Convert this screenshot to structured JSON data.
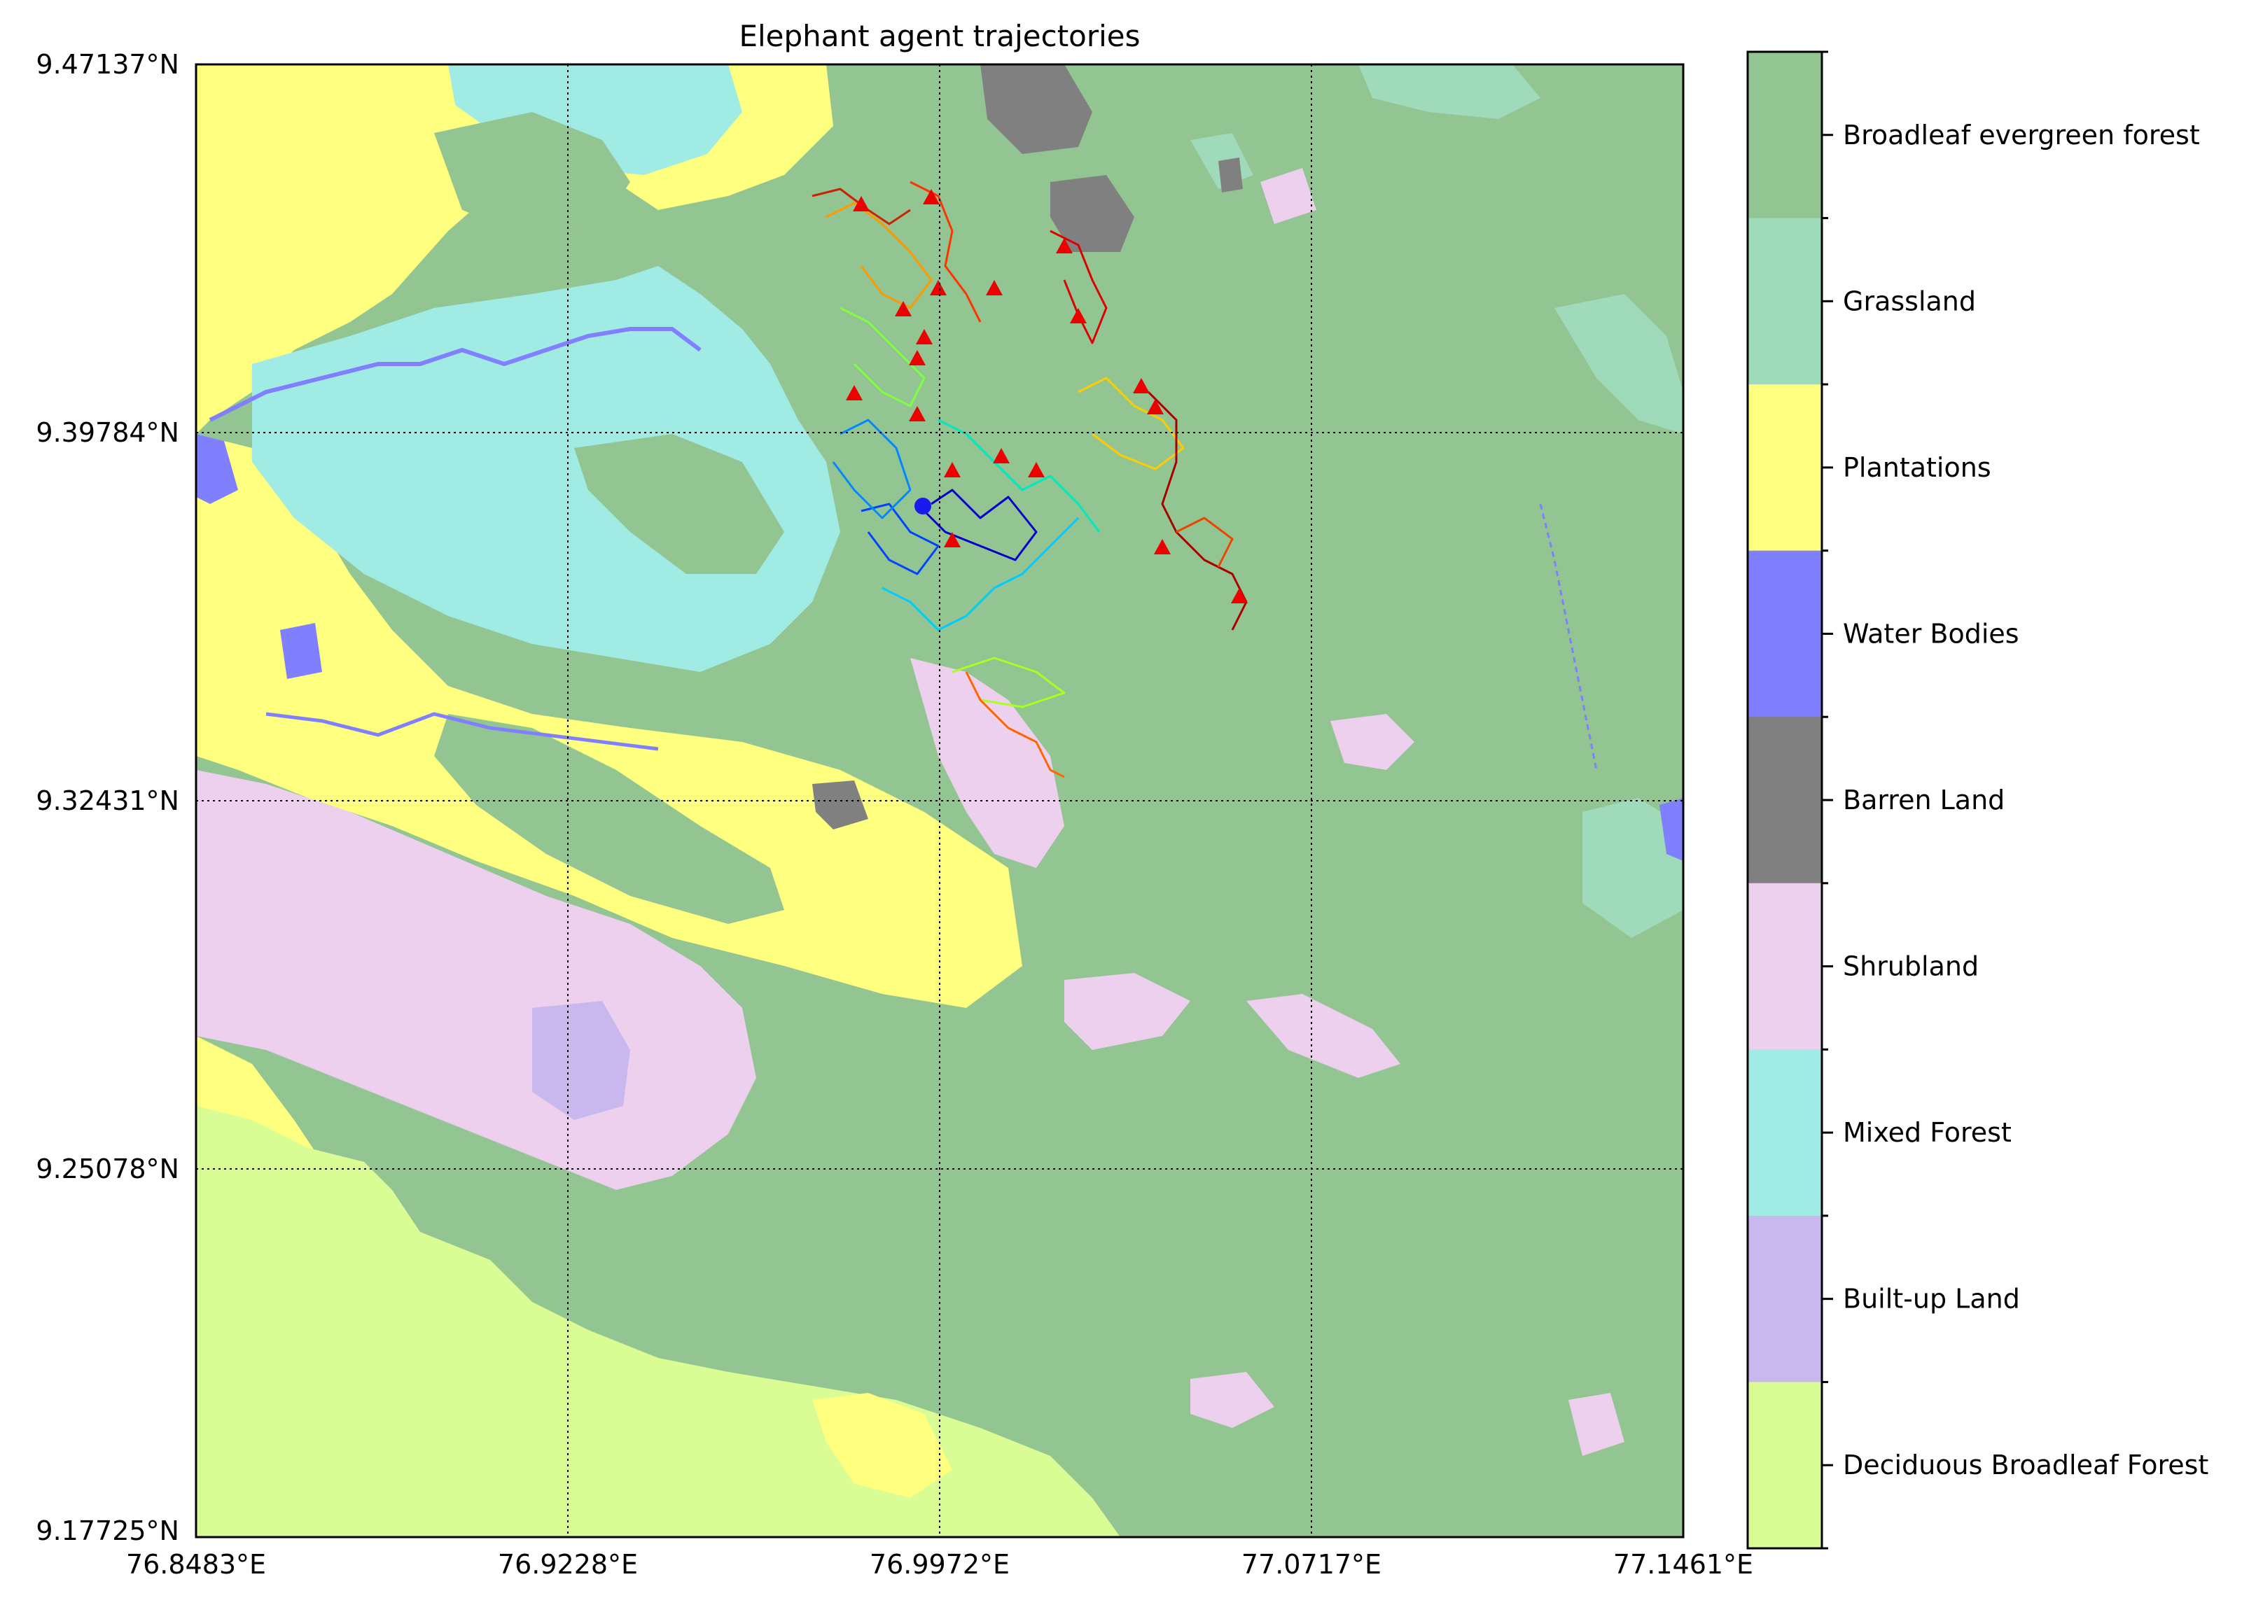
{
  "title": "Elephant agent trajectories",
  "map": {
    "lat_ticks": [
      "9.47137°N",
      "9.39784°N",
      "9.32431°N",
      "9.25078°N",
      "9.17725°N"
    ],
    "lon_ticks": [
      "76.8483°E",
      "76.9228°E",
      "76.9972°E",
      "77.0717°E",
      "77.1461°E"
    ],
    "grid": "dotted",
    "base_color": "#93c592"
  },
  "legend": {
    "placement": "right-colorbar",
    "classes": [
      {
        "label": "Broadleaf evergreen forest",
        "color": "#93c592"
      },
      {
        "label": "Grassland",
        "color": "#9fdabb"
      },
      {
        "label": "Plantations",
        "color": "#ffff80"
      },
      {
        "label": "Water Bodies",
        "color": "#8080ff"
      },
      {
        "label": "Barren Land",
        "color": "#808080"
      },
      {
        "label": "Shrubland",
        "color": "#edd0ee"
      },
      {
        "label": "Mixed Forest",
        "color": "#a0ece4"
      },
      {
        "label": "Built-up Land",
        "color": "#c8b8ee"
      },
      {
        "label": "Deciduous Broadleaf Forest",
        "color": "#d9fc95"
      }
    ]
  },
  "markers": {
    "end_marker": "red-triangle",
    "start_marker": "blue-circle"
  }
}
